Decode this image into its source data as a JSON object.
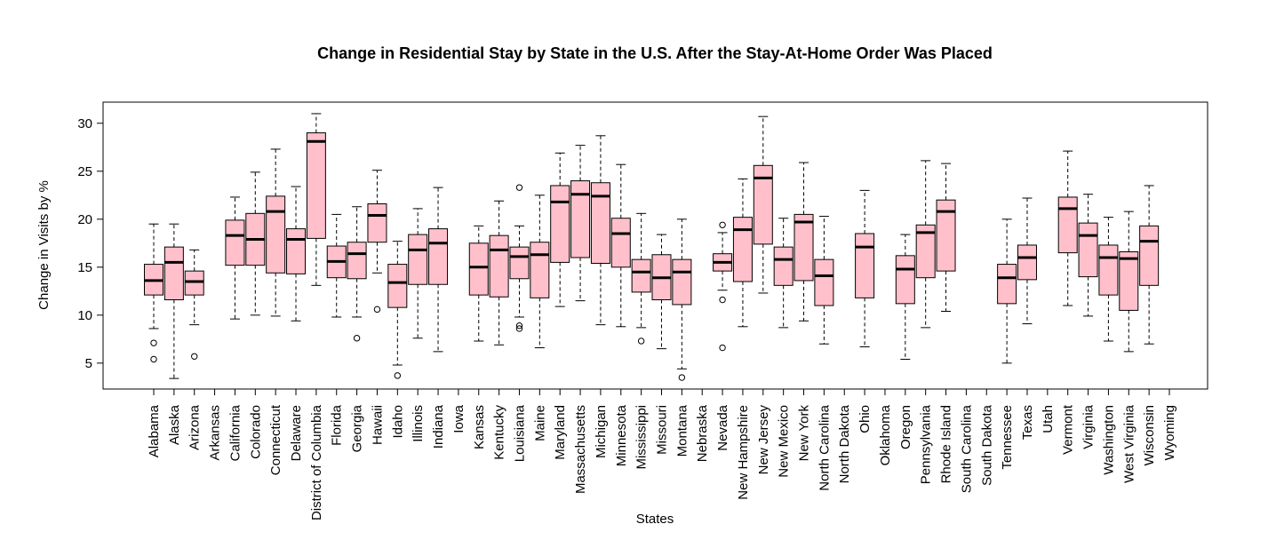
{
  "chart_data": {
    "type": "boxplot",
    "title": "Change in Residential Stay by State in the U.S. After the Stay-At-Home Order Was Placed",
    "xlabel": "States",
    "ylabel": "Change in Visits by %",
    "ylim": [
      2.3,
      32.2
    ],
    "yticks": [
      5,
      10,
      15,
      20,
      25,
      30
    ],
    "grid": false,
    "legend": "none",
    "box_fill": "#FFC0CB",
    "box_stroke": "#000000",
    "categories": [
      "Alabama",
      "Alaska",
      "Arizona",
      "Arkansas",
      "California",
      "Colorado",
      "Connecticut",
      "Delaware",
      "District of Columbia",
      "Florida",
      "Georgia",
      "Hawaii",
      "Idaho",
      "Illinois",
      "Indiana",
      "Iowa",
      "Kansas",
      "Kentucky",
      "Louisiana",
      "Maine",
      "Maryland",
      "Massachusetts",
      "Michigan",
      "Minnesota",
      "Mississippi",
      "Missouri",
      "Montana",
      "Nebraska",
      "Nevada",
      "New Hampshire",
      "New Jersey",
      "New Mexico",
      "New York",
      "North Carolina",
      "North Dakota",
      "Ohio",
      "Oklahoma",
      "Oregon",
      "Pennsylvania",
      "Rhode Island",
      "South Carolina",
      "South Dakota",
      "Tennessee",
      "Texas",
      "Utah",
      "Vermont",
      "Virginia",
      "Washington",
      "West Virginia",
      "Wisconsin",
      "Wyoming"
    ],
    "boxes": [
      {
        "min": 8.6,
        "q1": 12.1,
        "median": 13.6,
        "q3": 15.3,
        "max": 19.5,
        "outliers": [
          7.1,
          5.4
        ]
      },
      {
        "min": 3.4,
        "q1": 11.6,
        "median": 15.5,
        "q3": 17.1,
        "max": 19.5,
        "outliers": []
      },
      {
        "min": 9.0,
        "q1": 12.1,
        "median": 13.5,
        "q3": 14.6,
        "max": 16.8,
        "outliers": [
          5.7
        ]
      },
      null,
      {
        "min": 9.6,
        "q1": 15.2,
        "median": 18.3,
        "q3": 19.9,
        "max": 22.3,
        "outliers": []
      },
      {
        "min": 10.0,
        "q1": 15.2,
        "median": 17.9,
        "q3": 20.6,
        "max": 24.9,
        "outliers": []
      },
      {
        "min": 9.9,
        "q1": 14.4,
        "median": 20.8,
        "q3": 22.4,
        "max": 27.3,
        "outliers": []
      },
      {
        "min": 9.4,
        "q1": 14.3,
        "median": 17.9,
        "q3": 19.0,
        "max": 23.4,
        "outliers": []
      },
      {
        "min": 13.1,
        "q1": 18.0,
        "median": 28.1,
        "q3": 29.0,
        "max": 31.0,
        "outliers": []
      },
      {
        "min": 9.8,
        "q1": 13.9,
        "median": 15.6,
        "q3": 17.2,
        "max": 20.5,
        "outliers": []
      },
      {
        "min": 9.8,
        "q1": 13.8,
        "median": 16.4,
        "q3": 17.6,
        "max": 21.3,
        "outliers": [
          7.6
        ]
      },
      {
        "min": 14.4,
        "q1": 17.6,
        "median": 20.4,
        "q3": 21.6,
        "max": 25.1,
        "outliers": [
          10.6
        ]
      },
      {
        "min": 4.8,
        "q1": 10.8,
        "median": 13.4,
        "q3": 15.3,
        "max": 17.7,
        "outliers": [
          3.7
        ]
      },
      {
        "min": 7.6,
        "q1": 13.2,
        "median": 16.8,
        "q3": 18.4,
        "max": 21.1,
        "outliers": []
      },
      {
        "min": 6.2,
        "q1": 13.2,
        "median": 17.5,
        "q3": 19.0,
        "max": 23.3,
        "outliers": []
      },
      null,
      {
        "min": 7.3,
        "q1": 12.1,
        "median": 15.0,
        "q3": 17.5,
        "max": 19.3,
        "outliers": []
      },
      {
        "min": 6.9,
        "q1": 11.9,
        "median": 16.8,
        "q3": 18.3,
        "max": 21.9,
        "outliers": []
      },
      {
        "min": 9.8,
        "q1": 13.8,
        "median": 16.1,
        "q3": 17.1,
        "max": 19.3,
        "outliers": [
          23.3,
          8.9,
          8.6
        ]
      },
      {
        "min": 6.6,
        "q1": 11.8,
        "median": 16.3,
        "q3": 17.6,
        "max": 22.5,
        "outliers": []
      },
      {
        "min": 10.9,
        "q1": 15.5,
        "median": 21.8,
        "q3": 23.5,
        "max": 26.9,
        "outliers": []
      },
      {
        "min": 11.5,
        "q1": 16.0,
        "median": 22.6,
        "q3": 24.0,
        "max": 27.7,
        "outliers": []
      },
      {
        "min": 9.0,
        "q1": 15.4,
        "median": 22.4,
        "q3": 23.8,
        "max": 28.7,
        "outliers": []
      },
      {
        "min": 8.8,
        "q1": 15.0,
        "median": 18.5,
        "q3": 20.1,
        "max": 25.7,
        "outliers": []
      },
      {
        "min": 8.7,
        "q1": 12.4,
        "median": 14.5,
        "q3": 15.8,
        "max": 20.6,
        "outliers": [
          7.3
        ]
      },
      {
        "min": 6.5,
        "q1": 11.6,
        "median": 13.9,
        "q3": 16.3,
        "max": 18.4,
        "outliers": []
      },
      {
        "min": 4.4,
        "q1": 11.1,
        "median": 14.5,
        "q3": 15.8,
        "max": 20.0,
        "outliers": [
          3.5
        ]
      },
      null,
      {
        "min": 12.6,
        "q1": 14.6,
        "median": 15.5,
        "q3": 16.4,
        "max": 18.6,
        "outliers": [
          19.4,
          11.6,
          6.6
        ]
      },
      {
        "min": 8.8,
        "q1": 13.5,
        "median": 18.9,
        "q3": 20.2,
        "max": 24.2,
        "outliers": []
      },
      {
        "min": 12.3,
        "q1": 17.4,
        "median": 24.3,
        "q3": 25.6,
        "max": 30.7,
        "outliers": []
      },
      {
        "min": 8.7,
        "q1": 13.1,
        "median": 15.8,
        "q3": 17.1,
        "max": 20.1,
        "outliers": []
      },
      {
        "min": 9.4,
        "q1": 13.6,
        "median": 19.7,
        "q3": 20.5,
        "max": 25.9,
        "outliers": []
      },
      {
        "min": 7.0,
        "q1": 11.0,
        "median": 14.1,
        "q3": 15.8,
        "max": 20.3,
        "outliers": []
      },
      null,
      {
        "min": 6.7,
        "q1": 11.8,
        "median": 17.1,
        "q3": 18.5,
        "max": 23.0,
        "outliers": []
      },
      null,
      {
        "min": 5.4,
        "q1": 11.2,
        "median": 14.8,
        "q3": 16.2,
        "max": 18.4,
        "outliers": []
      },
      {
        "min": 8.7,
        "q1": 13.9,
        "median": 18.6,
        "q3": 19.4,
        "max": 26.1,
        "outliers": []
      },
      {
        "min": 10.4,
        "q1": 14.6,
        "median": 20.8,
        "q3": 22.0,
        "max": 25.8,
        "outliers": []
      },
      null,
      null,
      {
        "min": 5.0,
        "q1": 11.2,
        "median": 13.9,
        "q3": 15.3,
        "max": 20.0,
        "outliers": []
      },
      {
        "min": 9.1,
        "q1": 13.7,
        "median": 16.0,
        "q3": 17.3,
        "max": 22.2,
        "outliers": []
      },
      null,
      {
        "min": 11.0,
        "q1": 16.5,
        "median": 21.1,
        "q3": 22.3,
        "max": 27.1,
        "outliers": []
      },
      {
        "min": 9.9,
        "q1": 14.0,
        "median": 18.3,
        "q3": 19.6,
        "max": 22.6,
        "outliers": []
      },
      {
        "min": 7.3,
        "q1": 12.1,
        "median": 16.0,
        "q3": 17.3,
        "max": 20.2,
        "outliers": []
      },
      {
        "min": 6.2,
        "q1": 10.5,
        "median": 15.9,
        "q3": 16.6,
        "max": 20.8,
        "outliers": []
      },
      {
        "min": 7.0,
        "q1": 13.1,
        "median": 17.7,
        "q3": 19.3,
        "max": 23.5,
        "outliers": []
      },
      null
    ]
  }
}
